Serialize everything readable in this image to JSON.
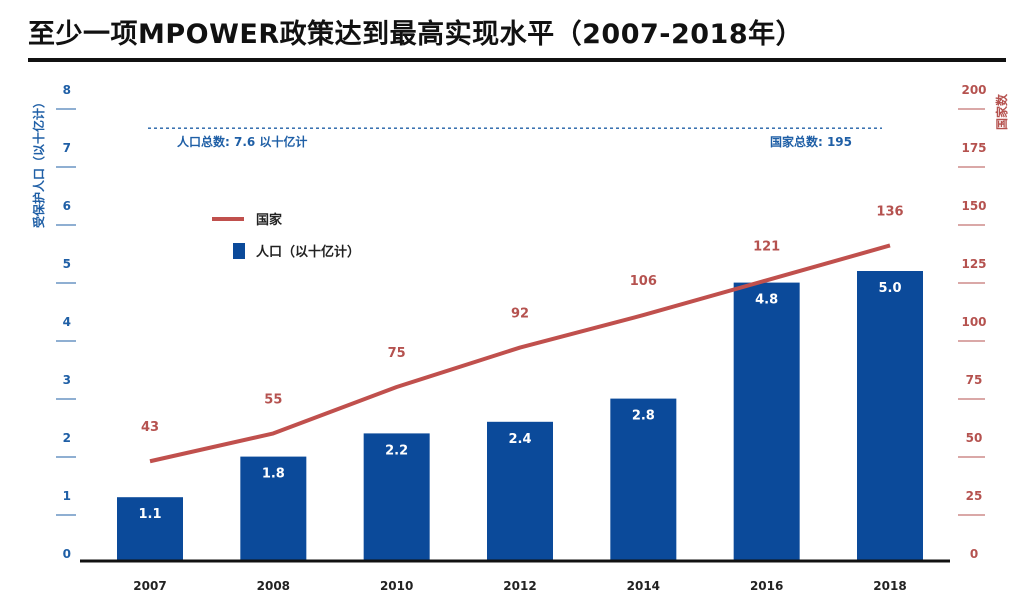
{
  "title": "至少一项MPOWER政策达到最高实现水平（2007-2018年）",
  "colors": {
    "bar": "#0b4a9a",
    "line": "#c0504d",
    "left_axis": "#1f5fa6",
    "right_axis": "#b5524f",
    "title": "#111111"
  },
  "chart_data": {
    "type": "bar",
    "categories": [
      "2007",
      "2008",
      "2010",
      "2012",
      "2014",
      "2016",
      "2018"
    ],
    "series": [
      {
        "name": "人口（以十亿计）",
        "type": "bar",
        "axis": "left",
        "values": [
          1.1,
          1.8,
          2.2,
          2.4,
          2.8,
          4.8,
          5.0
        ],
        "labels": [
          "1.1",
          "1.8",
          "2.2",
          "2.4",
          "2.8",
          "4.8",
          "5.0"
        ]
      },
      {
        "name": "国家",
        "type": "line",
        "axis": "right",
        "values": [
          43,
          55,
          75,
          92,
          106,
          121,
          136
        ],
        "labels": [
          "43",
          "55",
          "75",
          "92",
          "106",
          "121",
          "136"
        ]
      }
    ],
    "y_left": {
      "label": "受保护人口（以十亿计）",
      "range": [
        0,
        8
      ],
      "ticks": [
        "0",
        "1",
        "2",
        "3",
        "4",
        "5",
        "6",
        "7",
        "8"
      ]
    },
    "y_right": {
      "label": "国家数",
      "range": [
        0,
        200
      ],
      "ticks": [
        "0",
        "25",
        "50",
        "75",
        "100",
        "125",
        "150",
        "175",
        "200"
      ]
    },
    "reference_line": {
      "axis": "left",
      "value": 7.6,
      "style": "dashed",
      "left_label": "人口总数: 7.6 以十亿计",
      "right_label": "国家总数: 195"
    },
    "legend": {
      "placement": "upper-left",
      "items": [
        "国家",
        "人口（以十亿计）"
      ]
    },
    "grid": false
  }
}
